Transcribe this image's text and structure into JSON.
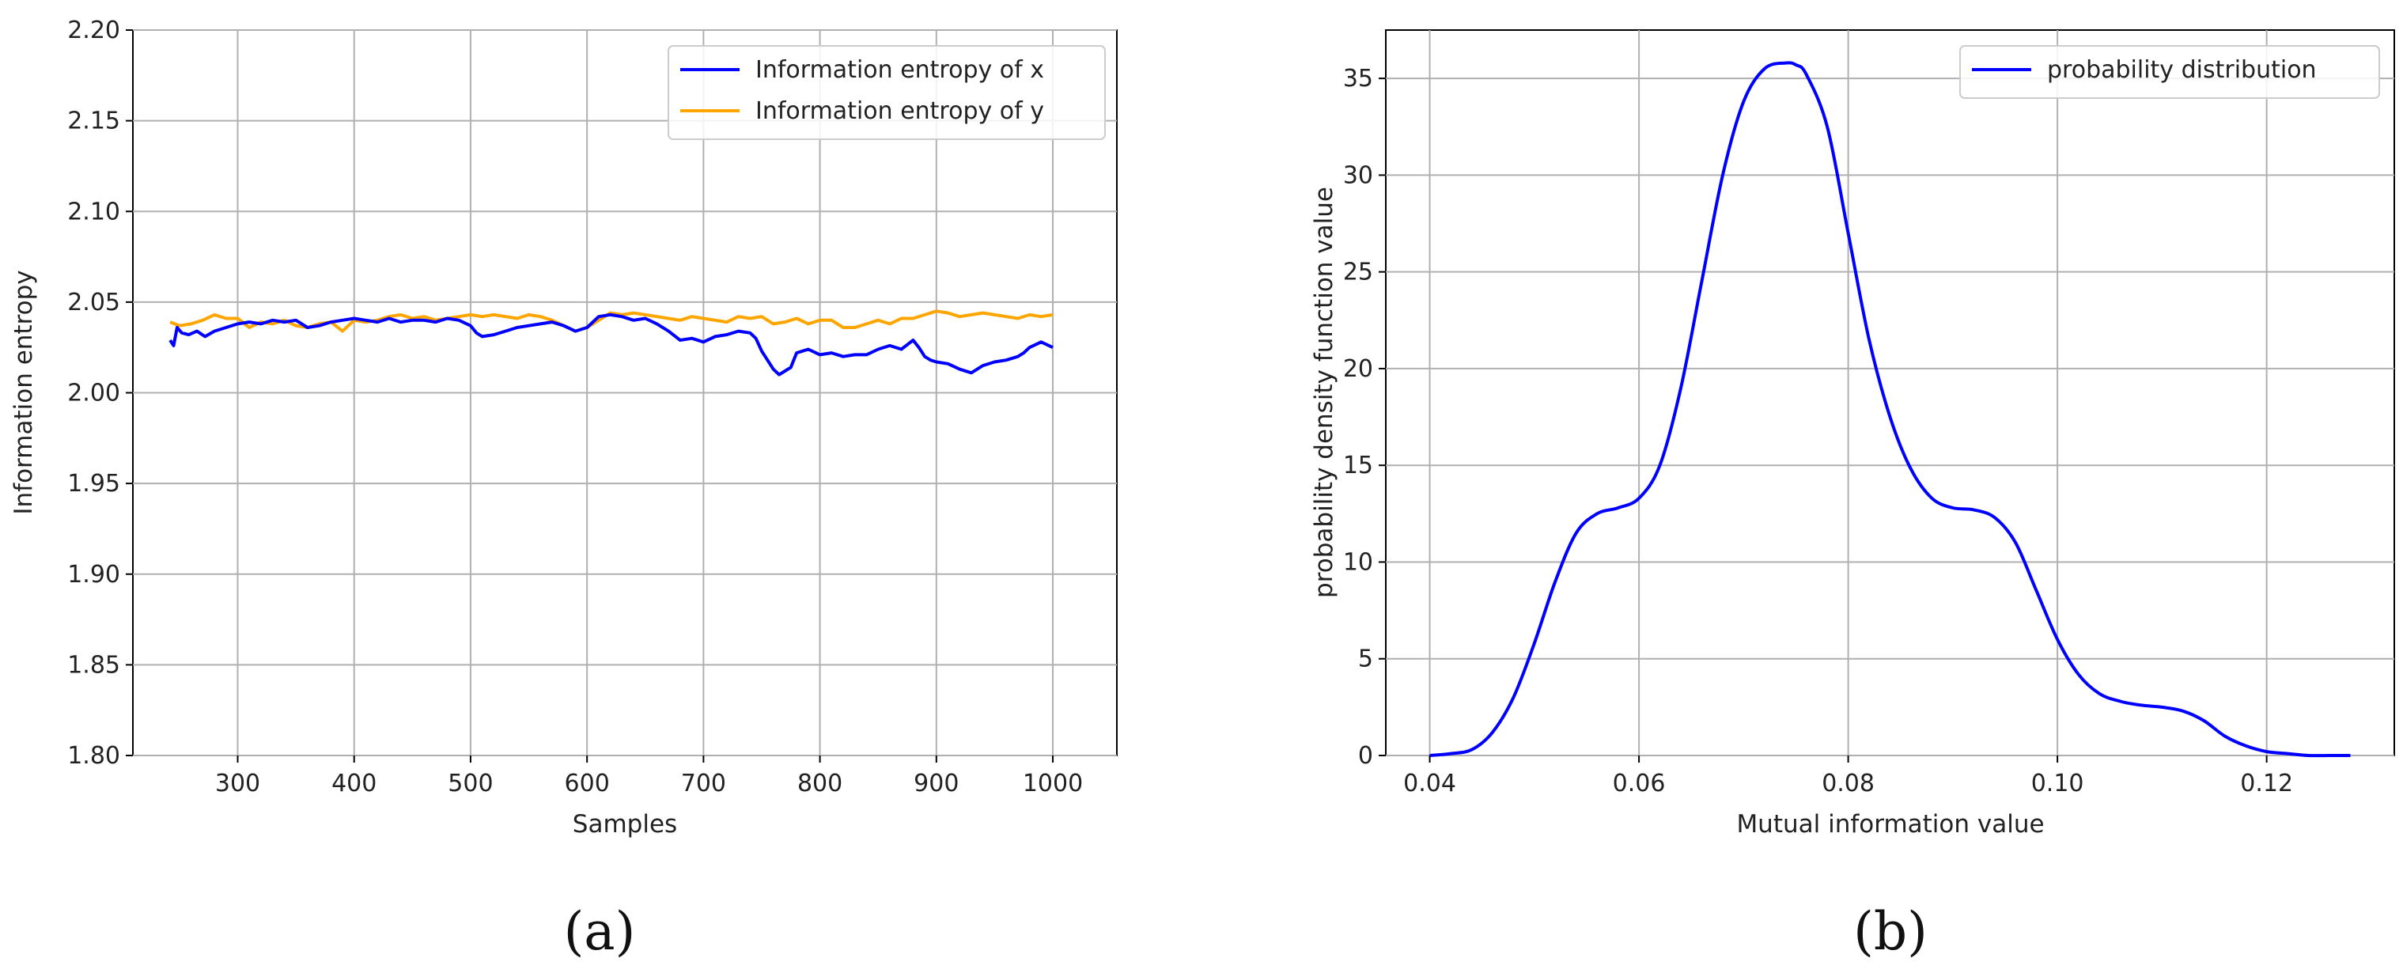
{
  "chart_data": [
    {
      "type": "line",
      "panel_label": "(a)",
      "xlabel": "Samples",
      "ylabel": "Information entropy",
      "xlim": [
        210,
        1055
      ],
      "ylim": [
        1.8,
        2.2
      ],
      "xticks": [
        300,
        400,
        500,
        600,
        700,
        800,
        900,
        1000
      ],
      "yticks": [
        1.8,
        1.85,
        1.9,
        1.95,
        2.0,
        2.05,
        2.1,
        2.15,
        2.2
      ],
      "xtick_labels": [
        "300",
        "400",
        "500",
        "600",
        "700",
        "800",
        "900",
        "1000"
      ],
      "ytick_labels": [
        "1.80",
        "1.85",
        "1.90",
        "1.95",
        "2.00",
        "2.05",
        "2.10",
        "2.15",
        "2.20"
      ],
      "grid": true,
      "legend_position": "top-right",
      "series": [
        {
          "name": "Information entropy of x",
          "color": "#0000ff",
          "x": [
            242,
            245,
            248,
            252,
            258,
            265,
            272,
            280,
            290,
            300,
            310,
            320,
            330,
            340,
            350,
            360,
            370,
            380,
            390,
            400,
            410,
            420,
            430,
            440,
            450,
            460,
            470,
            480,
            490,
            500,
            505,
            510,
            520,
            530,
            540,
            550,
            560,
            570,
            580,
            590,
            600,
            610,
            620,
            630,
            640,
            650,
            660,
            670,
            680,
            690,
            700,
            710,
            720,
            730,
            740,
            745,
            750,
            755,
            760,
            765,
            770,
            775,
            780,
            790,
            800,
            810,
            820,
            830,
            840,
            850,
            860,
            870,
            880,
            885,
            890,
            895,
            900,
            910,
            920,
            930,
            940,
            950,
            960,
            970,
            975,
            980,
            990,
            1000
          ],
          "y": [
            2.029,
            2.026,
            2.036,
            2.033,
            2.032,
            2.034,
            2.031,
            2.034,
            2.036,
            2.038,
            2.039,
            2.038,
            2.04,
            2.039,
            2.04,
            2.036,
            2.037,
            2.039,
            2.04,
            2.041,
            2.04,
            2.039,
            2.041,
            2.039,
            2.04,
            2.04,
            2.039,
            2.041,
            2.04,
            2.037,
            2.033,
            2.031,
            2.032,
            2.034,
            2.036,
            2.037,
            2.038,
            2.039,
            2.037,
            2.034,
            2.036,
            2.042,
            2.043,
            2.042,
            2.04,
            2.041,
            2.038,
            2.034,
            2.029,
            2.03,
            2.028,
            2.031,
            2.032,
            2.034,
            2.033,
            2.03,
            2.023,
            2.018,
            2.013,
            2.01,
            2.012,
            2.014,
            2.022,
            2.024,
            2.021,
            2.022,
            2.02,
            2.021,
            2.021,
            2.024,
            2.026,
            2.024,
            2.029,
            2.025,
            2.02,
            2.018,
            2.017,
            2.016,
            2.013,
            2.011,
            2.015,
            2.017,
            2.018,
            2.02,
            2.022,
            2.025,
            2.028,
            2.025
          ]
        },
        {
          "name": "Information entropy of y",
          "color": "#ffa500",
          "x": [
            242,
            250,
            260,
            270,
            280,
            290,
            300,
            310,
            320,
            330,
            340,
            350,
            360,
            370,
            380,
            390,
            400,
            410,
            420,
            430,
            440,
            450,
            460,
            470,
            480,
            490,
            500,
            510,
            520,
            530,
            540,
            550,
            560,
            570,
            580,
            590,
            600,
            610,
            620,
            630,
            640,
            650,
            660,
            670,
            680,
            690,
            700,
            710,
            720,
            730,
            740,
            750,
            760,
            770,
            780,
            790,
            800,
            810,
            820,
            830,
            840,
            850,
            860,
            870,
            880,
            890,
            900,
            910,
            920,
            930,
            940,
            950,
            960,
            970,
            980,
            990,
            1000
          ],
          "y": [
            2.039,
            2.037,
            2.038,
            2.04,
            2.043,
            2.041,
            2.041,
            2.036,
            2.039,
            2.038,
            2.04,
            2.037,
            2.036,
            2.038,
            2.039,
            2.034,
            2.04,
            2.039,
            2.04,
            2.042,
            2.043,
            2.041,
            2.042,
            2.04,
            2.041,
            2.042,
            2.043,
            2.042,
            2.043,
            2.042,
            2.041,
            2.043,
            2.042,
            2.04,
            2.037,
            2.034,
            2.036,
            2.04,
            2.044,
            2.043,
            2.044,
            2.043,
            2.042,
            2.041,
            2.04,
            2.042,
            2.041,
            2.04,
            2.039,
            2.042,
            2.041,
            2.042,
            2.038,
            2.039,
            2.041,
            2.038,
            2.04,
            2.04,
            2.036,
            2.036,
            2.038,
            2.04,
            2.038,
            2.041,
            2.041,
            2.043,
            2.045,
            2.044,
            2.042,
            2.043,
            2.044,
            2.043,
            2.042,
            2.041,
            2.043,
            2.042,
            2.043
          ]
        }
      ]
    },
    {
      "type": "line",
      "panel_label": "(b)",
      "xlabel": "Mutual information value",
      "ylabel": "probability density function value",
      "xlim": [
        0.0358,
        0.1322
      ],
      "ylim": [
        0,
        37.5
      ],
      "xticks": [
        0.04,
        0.06,
        0.08,
        0.1,
        0.12
      ],
      "yticks": [
        0,
        5,
        10,
        15,
        20,
        25,
        30,
        35
      ],
      "xtick_labels": [
        "0.04",
        "0.06",
        "0.08",
        "0.10",
        "0.12"
      ],
      "ytick_labels": [
        "0",
        "5",
        "10",
        "15",
        "20",
        "25",
        "30",
        "35"
      ],
      "grid": true,
      "legend_position": "top-right",
      "series": [
        {
          "name": "probability distribution",
          "color": "#0000ff",
          "x": [
            0.04,
            0.042,
            0.044,
            0.046,
            0.048,
            0.05,
            0.052,
            0.054,
            0.056,
            0.058,
            0.06,
            0.062,
            0.064,
            0.066,
            0.068,
            0.07,
            0.072,
            0.074,
            0.075,
            0.076,
            0.078,
            0.08,
            0.082,
            0.084,
            0.086,
            0.088,
            0.09,
            0.092,
            0.094,
            0.096,
            0.098,
            0.1,
            0.102,
            0.104,
            0.106,
            0.108,
            0.11,
            0.112,
            0.114,
            0.116,
            0.118,
            0.12,
            0.122,
            0.124,
            0.126,
            0.128
          ],
          "y": [
            0.0,
            0.1,
            0.3,
            1.2,
            3.0,
            5.8,
            9.0,
            11.5,
            12.5,
            12.8,
            13.3,
            15.0,
            19.0,
            24.5,
            30.0,
            33.8,
            35.5,
            35.8,
            35.7,
            35.2,
            32.5,
            27.0,
            21.5,
            17.5,
            14.8,
            13.3,
            12.8,
            12.7,
            12.3,
            11.0,
            8.5,
            6.0,
            4.2,
            3.2,
            2.8,
            2.6,
            2.5,
            2.3,
            1.8,
            1.0,
            0.5,
            0.2,
            0.1,
            0.0,
            0.0,
            0.0
          ]
        }
      ]
    }
  ]
}
